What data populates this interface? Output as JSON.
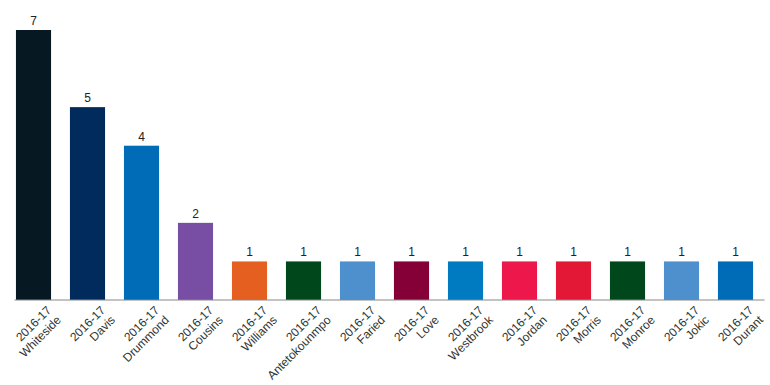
{
  "chart_data": {
    "type": "bar",
    "categories": [
      "2016-17 Whiteside",
      "2016-17 Davis",
      "2016-17 Drummond",
      "2016-17 Cousins",
      "2016-17 Williams",
      "2016-17 Antetokounmpo",
      "2016-17 Faried",
      "2016-17 Love",
      "2016-17 Westbrook",
      "2016-17 Jordan",
      "2016-17 Morris",
      "2016-17 Monroe",
      "2016-17 Jokic",
      "2016-17 Durant"
    ],
    "values": [
      7,
      5,
      4,
      2,
      1,
      1,
      1,
      1,
      1,
      1,
      1,
      1,
      1,
      1
    ],
    "colors": [
      "#061922",
      "#002b5c",
      "#006bb6",
      "#774ea3",
      "#e56020",
      "#00471b",
      "#4d90cd",
      "#860038",
      "#007ac1",
      "#ed174c",
      "#e31837",
      "#00471b",
      "#4d90cd",
      "#006bb6"
    ],
    "ylim": [
      0,
      7
    ],
    "data_labels": true,
    "tick_labels": "x"
  }
}
